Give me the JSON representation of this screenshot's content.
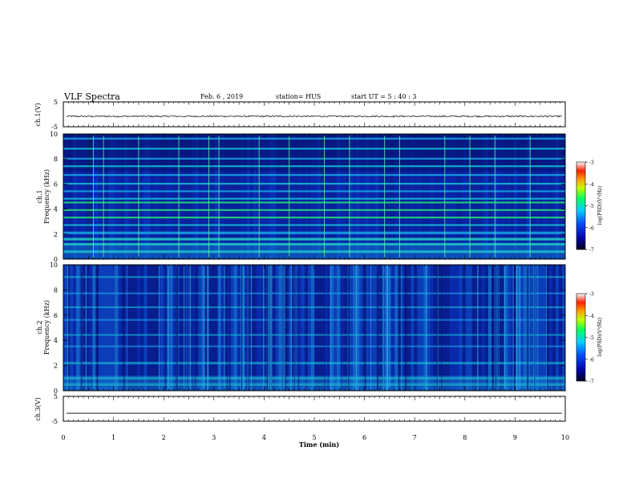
{
  "header": {
    "title": "VLF Spectra",
    "date": "Feb. 6 , 2019",
    "station": "station= HUS",
    "start_time": "start UT = 5 : 40 : 3"
  },
  "chart_data": [
    {
      "type": "line",
      "panel": "ch1-waveform",
      "ylabel": "ch.1(V)",
      "ylim": [
        -5,
        5
      ],
      "y_ticks": [
        "5",
        "-5"
      ],
      "xlim": [
        0,
        10
      ],
      "description_values": {
        "baseline": -0.8,
        "noise_amplitude": 0.3
      }
    },
    {
      "type": "heatmap",
      "panel": "ch1-spectrogram",
      "ylabel": "ch.1",
      "ylabel2": "Frequency (kHz)",
      "ylim": [
        0,
        10
      ],
      "y_ticks": [
        "0",
        "2",
        "4",
        "6",
        "8",
        "10"
      ],
      "xlim": [
        0,
        10
      ],
      "bright_bands_khz": [
        0.6,
        1.2,
        1.6,
        2.1,
        2.7,
        3.3,
        3.9,
        4.5,
        4.8,
        5.4,
        6.0,
        6.7,
        7.4,
        8.0,
        8.8,
        9.6
      ],
      "impulses_min": [
        0.6,
        0.8,
        1.5,
        2.3,
        2.9,
        3.1,
        3.9,
        4.5,
        5.2,
        5.7,
        6.4,
        6.7,
        7.6,
        8.1,
        8.6,
        9.3
      ],
      "colorbar": {
        "label": "log(PSD)(V²/Hz)",
        "range": [
          -7,
          -3
        ],
        "ticks": [
          "-3",
          "-4",
          "-5",
          "-6",
          "-7"
        ]
      }
    },
    {
      "type": "heatmap",
      "panel": "ch2-spectrogram",
      "ylabel": "ch.2",
      "ylabel2": "Frequency (kHz)",
      "ylim": [
        0,
        10
      ],
      "y_ticks": [
        "0",
        "2",
        "4",
        "6",
        "8",
        "10"
      ],
      "xlim": [
        0,
        10
      ],
      "bright_bands_khz": [
        0.5,
        1.0,
        2.2,
        3.5,
        4.4,
        5.6,
        6.6,
        7.7,
        9.0
      ],
      "colorbar": {
        "label": "log(PSD)(V²/Hz)",
        "range": [
          -7,
          -3
        ],
        "ticks": [
          "-3",
          "-4",
          "-5",
          "-6",
          "-7"
        ]
      }
    },
    {
      "type": "line",
      "panel": "ch3-waveform",
      "ylabel": "ch.3(V)",
      "ylim": [
        -5,
        5
      ],
      "y_ticks": [
        "5",
        "-5"
      ],
      "xlim": [
        0,
        10
      ],
      "description_values": {
        "baseline": -1.8,
        "noise_amplitude": 0.0
      }
    }
  ],
  "x_axis": {
    "label": "Time (min)",
    "range": [
      0,
      10
    ],
    "ticks": [
      "0",
      "1",
      "2",
      "3",
      "4",
      "5",
      "6",
      "7",
      "8",
      "9",
      "10"
    ]
  }
}
